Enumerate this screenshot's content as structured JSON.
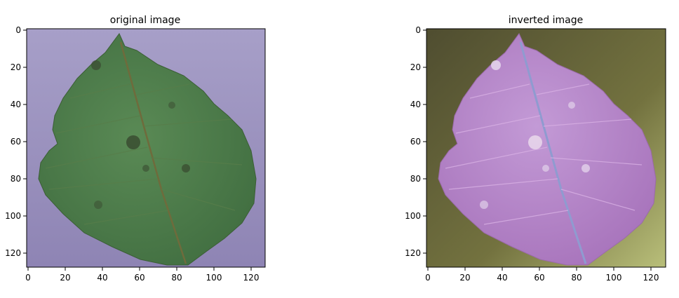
{
  "panels": [
    {
      "title": "original image",
      "xticks": [
        "0",
        "20",
        "40",
        "60",
        "80",
        "100",
        "120"
      ],
      "yticks": [
        "0",
        "20",
        "40",
        "60",
        "80",
        "100",
        "120"
      ],
      "colors": {
        "background": "#9a8fbd",
        "leaf": "#4a7a48",
        "leaf_dark": "#3b6a3c",
        "vein": "#6e6a3a"
      }
    },
    {
      "title": "inverted image",
      "xticks": [
        "0",
        "20",
        "40",
        "60",
        "80",
        "100",
        "120"
      ],
      "yticks": [
        "0",
        "20",
        "40",
        "60",
        "80",
        "100",
        "120"
      ],
      "colors": {
        "background": "#6b6a42",
        "leaf": "#b27cc6",
        "leaf_light": "#c99ad8",
        "vein": "#8c96c8"
      }
    }
  ]
}
